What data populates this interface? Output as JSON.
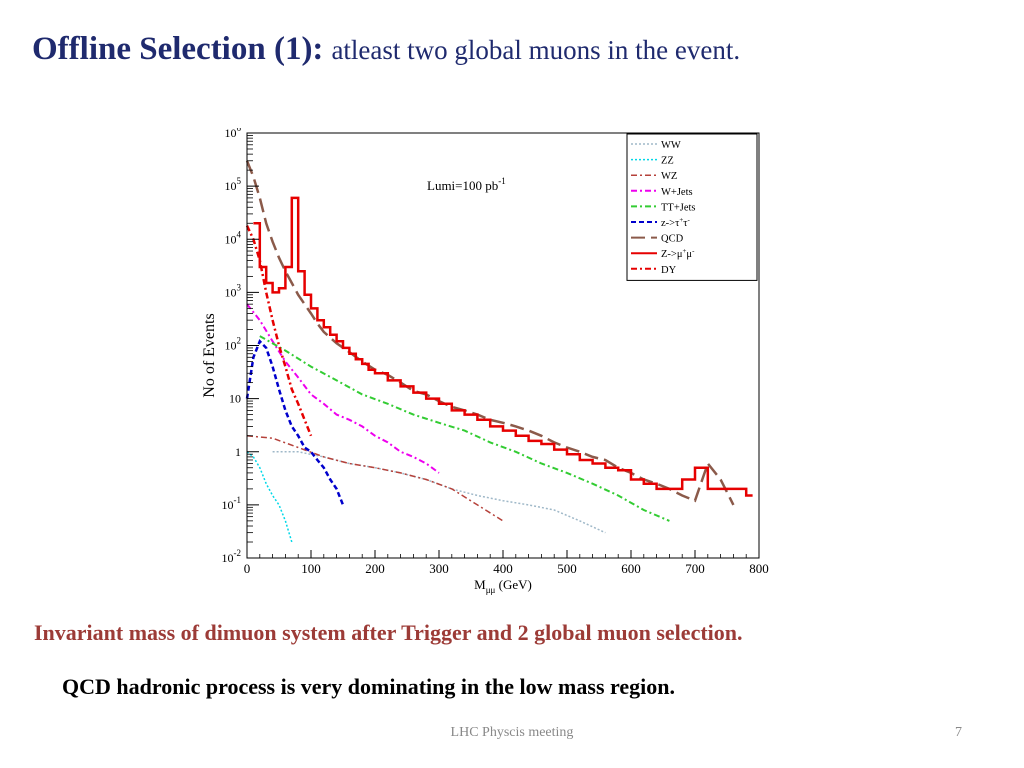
{
  "slide": {
    "title_main": "Offline Selection (1):",
    "title_sub": "atleast two global muons  in the event.",
    "caption_1": "Invariant mass of dimuon system after Trigger and 2 global muon selection.",
    "caption_2": "QCD hadronic process is very dominating in the low mass region.",
    "footer": "LHC Physcis meeting",
    "page_number": "7"
  },
  "colors": {
    "title": "#1f2a6e",
    "caption_1": "#9c3b37"
  },
  "chart_data": {
    "type": "line",
    "title": "",
    "annotation": {
      "text": "Lumi=100 pb",
      "sup": "-1"
    },
    "xlabel": {
      "base": "M",
      "sub": "μμ",
      "unit": " (GeV)"
    },
    "ylabel": "No of Events",
    "xlim": [
      0,
      800
    ],
    "ylim": [
      0.01,
      1000000
    ],
    "yscale": "log",
    "xticks": [
      0,
      100,
      200,
      300,
      400,
      500,
      600,
      700,
      800
    ],
    "yticks": [
      {
        "value": 0.01,
        "base": "10",
        "exp": "-2"
      },
      {
        "value": 0.1,
        "base": "10",
        "exp": "-1"
      },
      {
        "value": 1,
        "base": "1",
        "exp": ""
      },
      {
        "value": 10,
        "base": "10",
        "exp": ""
      },
      {
        "value": 100,
        "base": "10",
        "exp": "2"
      },
      {
        "value": 1000,
        "base": "10",
        "exp": "3"
      },
      {
        "value": 10000,
        "base": "10",
        "exp": "4"
      },
      {
        "value": 100000,
        "base": "10",
        "exp": "5"
      },
      {
        "value": 1000000,
        "base": "10",
        "exp": "6"
      }
    ],
    "grid": false,
    "legend_position": "top-right",
    "series": [
      {
        "name": "WW",
        "label": "WW",
        "color": "#9fb8c8",
        "dash": "2,2",
        "width": 1.5,
        "x": [
          40,
          80,
          120,
          160,
          200,
          240,
          280,
          320,
          360,
          400,
          440,
          480,
          520,
          560
        ],
        "y": [
          1,
          1,
          0.8,
          0.6,
          0.5,
          0.4,
          0.3,
          0.2,
          0.15,
          0.12,
          0.1,
          0.08,
          0.05,
          0.03
        ]
      },
      {
        "name": "ZZ",
        "label": "ZZ",
        "color": "#00d8e8",
        "dash": "2,2",
        "width": 1.5,
        "x": [
          0,
          10,
          20,
          30,
          40,
          50,
          60,
          70
        ],
        "y": [
          1,
          0.8,
          0.5,
          0.25,
          0.15,
          0.1,
          0.05,
          0.02
        ]
      },
      {
        "name": "WZ",
        "label": "WZ",
        "color": "#b5413a",
        "dash": "6,3,2,3",
        "width": 1.5,
        "x": [
          0,
          40,
          80,
          120,
          160,
          200,
          240,
          280,
          320,
          360,
          400
        ],
        "y": [
          2,
          1.8,
          1.2,
          0.8,
          0.6,
          0.5,
          0.4,
          0.3,
          0.2,
          0.1,
          0.05
        ]
      },
      {
        "name": "W+Jets",
        "label": "W+Jets",
        "color": "#ee00ee",
        "dash": "6,3,2,3",
        "width": 2,
        "x": [
          0,
          20,
          40,
          60,
          80,
          100,
          120,
          140,
          160,
          180,
          200,
          220,
          240,
          260,
          280,
          300
        ],
        "y": [
          600,
          300,
          120,
          50,
          25,
          12,
          8,
          5,
          4,
          3,
          2,
          1.5,
          1,
          0.8,
          0.6,
          0.4
        ]
      },
      {
        "name": "TT+Jets",
        "label": "TT+Jets",
        "color": "#33cc33",
        "dash": "6,3,2,3",
        "width": 2,
        "x": [
          20,
          60,
          100,
          140,
          180,
          220,
          260,
          300,
          340,
          380,
          420,
          460,
          500,
          540,
          580,
          620,
          660
        ],
        "y": [
          150,
          80,
          40,
          22,
          12,
          8,
          5,
          3.5,
          2.5,
          1.5,
          1,
          0.6,
          0.4,
          0.25,
          0.15,
          0.08,
          0.05
        ]
      },
      {
        "name": "z->ττ",
        "label": {
          "base": "z->τ",
          "sup1": "+",
          "mid": "τ",
          "sup2": "-"
        },
        "color": "#0000cc",
        "dash": "5,3",
        "width": 2.5,
        "x": [
          0,
          10,
          20,
          30,
          40,
          50,
          60,
          70,
          80,
          90,
          100,
          110,
          120,
          130,
          140,
          150
        ],
        "y": [
          10,
          60,
          120,
          90,
          40,
          15,
          6,
          3,
          2,
          1.2,
          1,
          0.7,
          0.5,
          0.3,
          0.2,
          0.1
        ]
      },
      {
        "name": "QCD",
        "label": "QCD",
        "color": "#8b5a4a",
        "dash": "14,6",
        "width": 2.5,
        "x": [
          0,
          10,
          20,
          30,
          40,
          50,
          60,
          70,
          80,
          90,
          100,
          110,
          120,
          140,
          160,
          180,
          200,
          220,
          240,
          260,
          280,
          300,
          320,
          340,
          360,
          380,
          400,
          420,
          440,
          460,
          480,
          500,
          520,
          540,
          560,
          580,
          600,
          620,
          640,
          660,
          680,
          700,
          720,
          740,
          760
        ],
        "y": [
          300000,
          150000,
          60000,
          20000,
          9000,
          4500,
          2500,
          1500,
          900,
          600,
          400,
          260,
          180,
          110,
          75,
          50,
          35,
          28,
          20,
          14,
          12,
          9,
          7,
          6,
          5,
          4,
          3.5,
          3,
          2.5,
          2,
          1.5,
          1.2,
          1,
          0.8,
          0.7,
          0.5,
          0.4,
          0.3,
          0.25,
          0.2,
          0.15,
          0.12,
          0.6,
          0.3,
          0.1
        ]
      },
      {
        "name": "Z->μμ",
        "label": {
          "base": "Z->μ",
          "sup1": "+",
          "mid": "μ",
          "sup2": "-"
        },
        "color": "#e60000",
        "dash": "none",
        "width": 2.5,
        "step": true,
        "x": [
          10,
          20,
          30,
          40,
          50,
          60,
          70,
          80,
          90,
          100,
          110,
          120,
          130,
          140,
          150,
          160,
          170,
          180,
          190,
          200,
          220,
          240,
          260,
          280,
          300,
          320,
          340,
          360,
          380,
          400,
          420,
          440,
          460,
          480,
          500,
          520,
          540,
          560,
          580,
          600,
          620,
          640,
          660,
          680,
          700,
          720,
          740,
          760,
          780
        ],
        "y": [
          20000,
          3000,
          1500,
          1000,
          1200,
          3000,
          60000,
          2500,
          900,
          500,
          300,
          220,
          160,
          120,
          90,
          70,
          55,
          45,
          35,
          30,
          22,
          17,
          13,
          10,
          8,
          6,
          5,
          4,
          3,
          2.5,
          2,
          1.6,
          1.4,
          1.1,
          0.9,
          0.7,
          0.6,
          0.5,
          0.45,
          0.3,
          0.25,
          0.2,
          0.2,
          0.3,
          0.5,
          0.2,
          0.2,
          0.2,
          0.15
        ]
      },
      {
        "name": "DY",
        "label": "DY",
        "color": "#e60000",
        "dash": "6,3,2,3",
        "width": 2.5,
        "x": [
          0,
          10,
          20,
          30,
          40,
          50,
          60,
          70,
          80,
          90,
          100
        ],
        "y": [
          18000,
          10000,
          4000,
          1000,
          300,
          100,
          40,
          15,
          8,
          4,
          2
        ]
      }
    ]
  }
}
